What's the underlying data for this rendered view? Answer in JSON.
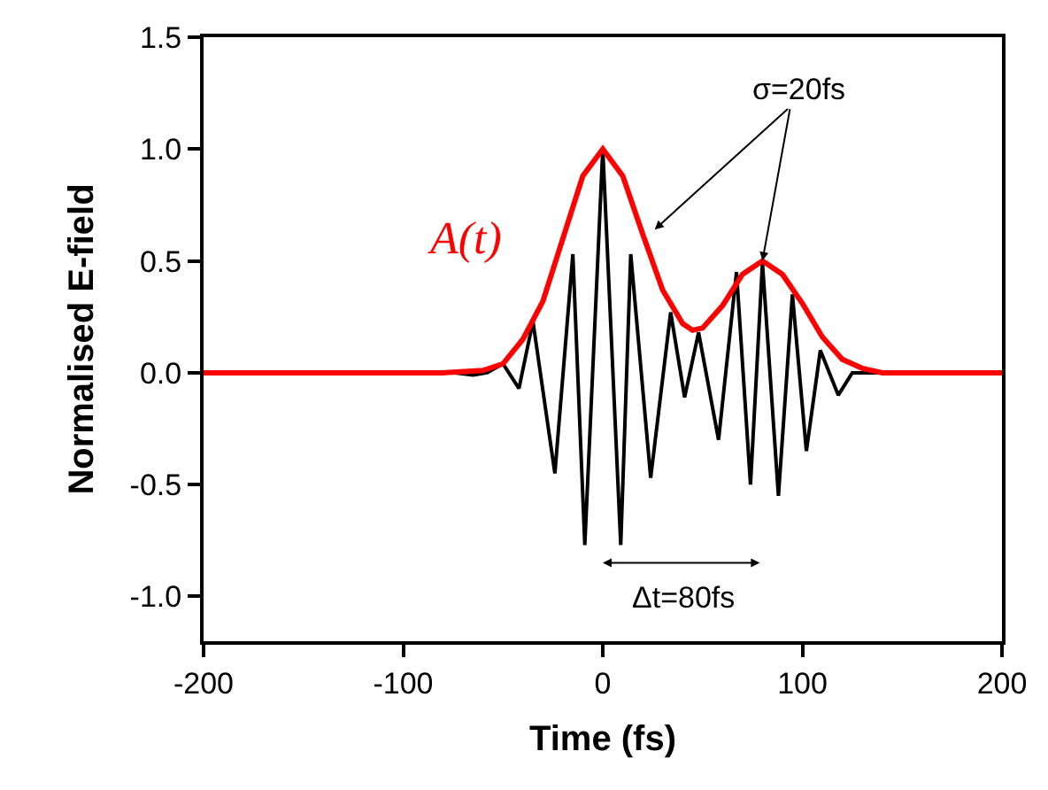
{
  "chart_data": {
    "type": "line",
    "xlabel": "Time (fs)",
    "ylabel": "Normalised E-field",
    "xlim": [
      -200,
      200
    ],
    "xticks": [
      -200,
      -100,
      0,
      100,
      200
    ],
    "ylim": [
      -1.2,
      1.5
    ],
    "yticks": [
      {
        "value": -1.0,
        "label": "-1.0"
      },
      {
        "value": -0.5,
        "label": "-0.5"
      },
      {
        "value": 0.0,
        "label": "0.0"
      },
      {
        "value": 0.5,
        "label": "0.5"
      },
      {
        "value": 1.0,
        "label": "1.0"
      },
      {
        "value": 1.5,
        "label": "1.5"
      }
    ],
    "legend": false,
    "marker": "none",
    "line_style": "solid",
    "series": [
      {
        "color": "#000000",
        "x": [
          -200,
          -75,
          -65,
          -58,
          -50,
          -42,
          -35,
          -24,
          -15,
          -9,
          0,
          9,
          14,
          24,
          34,
          41,
          48,
          58,
          67,
          74,
          80,
          88,
          95,
          102,
          109,
          118,
          125,
          135,
          200
        ],
        "values": [
          0,
          0,
          -0.01,
          0.0,
          0.04,
          -0.07,
          0.23,
          -0.45,
          0.53,
          -0.77,
          1.0,
          -0.77,
          0.53,
          -0.47,
          0.27,
          -0.11,
          0.18,
          -0.3,
          0.45,
          -0.5,
          0.49,
          -0.55,
          0.35,
          -0.35,
          0.1,
          -0.1,
          0,
          0,
          0
        ]
      },
      {
        "name": "A(t)",
        "color": "#ff0000",
        "x": [
          -200,
          -80,
          -60,
          -50,
          -40,
          -30,
          -20,
          -10,
          0,
          10,
          20,
          30,
          40,
          45,
          50,
          60,
          70,
          80,
          90,
          100,
          110,
          120,
          130,
          140,
          200
        ],
        "values": [
          0,
          0,
          0.01,
          0.04,
          0.15,
          0.32,
          0.6,
          0.88,
          1.0,
          0.88,
          0.62,
          0.37,
          0.22,
          0.19,
          0.2,
          0.3,
          0.44,
          0.5,
          0.44,
          0.31,
          0.16,
          0.06,
          0.02,
          0,
          0
        ]
      }
    ],
    "annotations": [
      {
        "text": "σ=20fs",
        "x": 80,
        "y": 0.5
      },
      "Δt=80fs"
    ]
  }
}
